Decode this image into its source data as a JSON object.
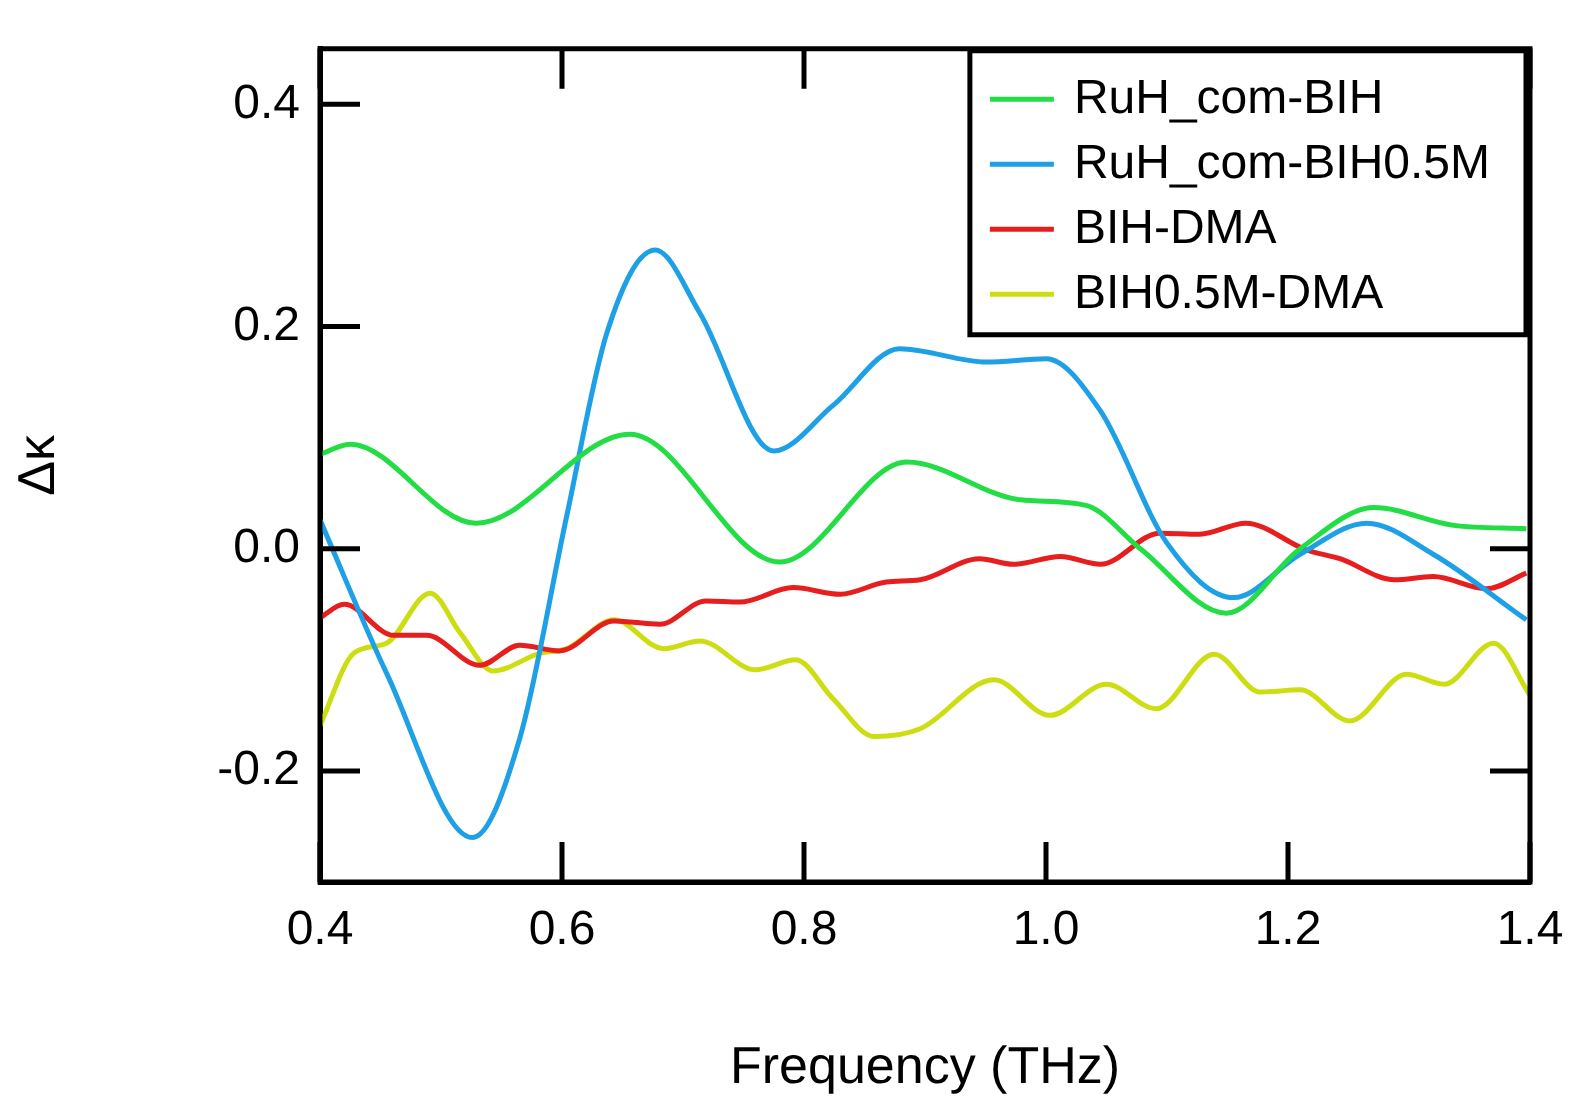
{
  "chart_data": {
    "type": "line",
    "xlabel": "Frequency (THz)",
    "ylabel": "Δκ",
    "xlim": [
      0.4,
      1.4
    ],
    "ylim": [
      -0.3,
      0.45
    ],
    "xticks": [
      {
        "value": 0.4,
        "label": "0.4"
      },
      {
        "value": 0.6,
        "label": "0.6"
      },
      {
        "value": 0.8,
        "label": "0.8"
      },
      {
        "value": 1,
        "label": "1.0"
      },
      {
        "value": 1.2,
        "label": "1.2"
      },
      {
        "value": 1.4,
        "label": "1.4"
      }
    ],
    "yticks": [
      {
        "value": -0.2,
        "label": "-0.2"
      },
      {
        "value": 0,
        "label": "0.0"
      },
      {
        "value": 0.2,
        "label": "0.2"
      },
      {
        "value": 0.4,
        "label": "0.4"
      }
    ],
    "grid": false,
    "legend": "top right",
    "marker": "none",
    "line_style": "solid",
    "series": [
      {
        "name": "RuH_com-BIH",
        "color": "#22dd44",
        "x": [
          0.4,
          0.425,
          0.529,
          0.656,
          0.78,
          0.885,
          0.979,
          1.033,
          1.078,
          1.149,
          1.21,
          1.271,
          1.337,
          1.397
        ],
        "values": [
          0.085,
          0.094,
          0.023,
          0.103,
          -0.012,
          0.078,
          0.044,
          0.039,
          0.0,
          -0.058,
          0.0,
          0.037,
          0.021,
          0.018
        ]
      },
      {
        "name": "RuH_com-BIH0.5M",
        "color": "#1ea0e6",
        "x": [
          0.4,
          0.455,
          0.526,
          0.565,
          0.604,
          0.637,
          0.677,
          0.714,
          0.775,
          0.824,
          0.879,
          0.951,
          1.0,
          1.045,
          1.1,
          1.155,
          1.21,
          1.265,
          1.32,
          1.397
        ],
        "values": [
          0.026,
          -0.112,
          -0.26,
          -0.171,
          0.03,
          0.194,
          0.269,
          0.212,
          0.088,
          0.129,
          0.18,
          0.168,
          0.171,
          0.124,
          0.005,
          -0.044,
          -0.005,
          0.023,
          -0.005,
          -0.064
        ]
      },
      {
        "name": "BIH-DMA",
        "color": "#e61e1e",
        "x": [
          0.4,
          0.42,
          0.461,
          0.488,
          0.532,
          0.565,
          0.598,
          0.643,
          0.681,
          0.719,
          0.747,
          0.791,
          0.83,
          0.868,
          0.896,
          0.945,
          0.973,
          1.012,
          1.045,
          1.094,
          1.127,
          1.165,
          1.215,
          1.243,
          1.288,
          1.32,
          1.364,
          1.397
        ],
        "values": [
          -0.062,
          -0.05,
          -0.078,
          -0.078,
          -0.105,
          -0.087,
          -0.092,
          -0.065,
          -0.068,
          -0.047,
          -0.048,
          -0.035,
          -0.041,
          -0.03,
          -0.028,
          -0.009,
          -0.014,
          -0.007,
          -0.014,
          0.014,
          0.013,
          0.023,
          -0.001,
          -0.009,
          -0.028,
          -0.025,
          -0.036,
          -0.022
        ]
      },
      {
        "name": "BIH0.5M-DMA",
        "color": "#ccdd11",
        "x": [
          0.4,
          0.428,
          0.455,
          0.491,
          0.516,
          0.543,
          0.582,
          0.604,
          0.643,
          0.684,
          0.714,
          0.76,
          0.793,
          0.824,
          0.858,
          0.896,
          0.957,
          1.003,
          1.05,
          1.091,
          1.139,
          1.177,
          1.21,
          1.251,
          1.298,
          1.329,
          1.37,
          1.4
        ],
        "values": [
          -0.159,
          -0.094,
          -0.085,
          -0.04,
          -0.076,
          -0.11,
          -0.094,
          -0.09,
          -0.064,
          -0.09,
          -0.083,
          -0.109,
          -0.1,
          -0.135,
          -0.169,
          -0.162,
          -0.118,
          -0.15,
          -0.122,
          -0.144,
          -0.095,
          -0.129,
          -0.127,
          -0.155,
          -0.113,
          -0.122,
          -0.085,
          -0.132
        ]
      }
    ]
  }
}
